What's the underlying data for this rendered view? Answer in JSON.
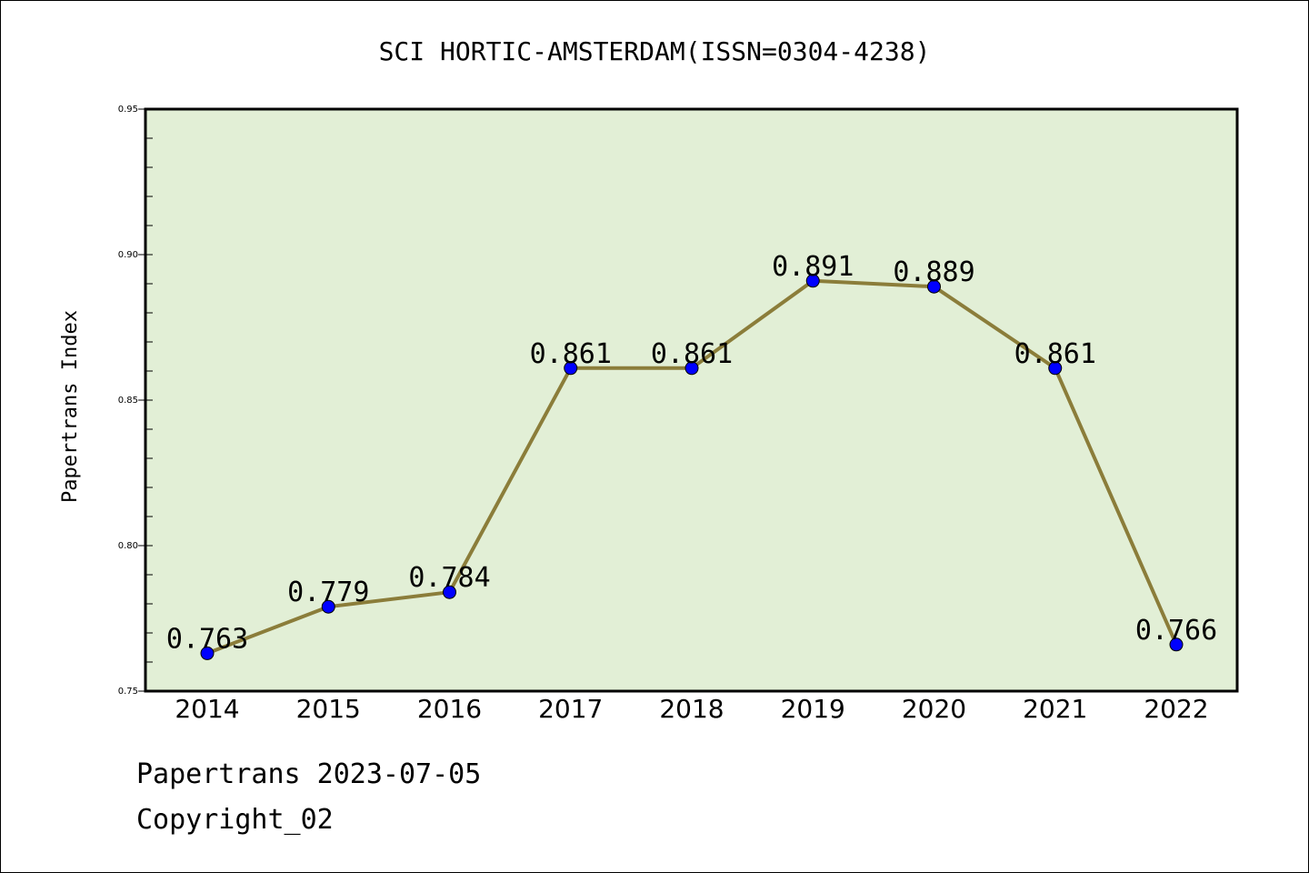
{
  "chart_data": {
    "type": "line",
    "title": "SCI HORTIC-AMSTERDAM(ISSN=0304-4238)",
    "xlabel": "",
    "ylabel": "Papertrans Index",
    "categories": [
      "2014",
      "2015",
      "2016",
      "2017",
      "2018",
      "2019",
      "2020",
      "2021",
      "2022"
    ],
    "series": [
      {
        "values": [
          0.763,
          0.779,
          0.784,
          0.861,
          0.861,
          0.891,
          0.889,
          0.861,
          0.766
        ],
        "labels": [
          "0.763",
          "0.779",
          "0.784",
          "0.861",
          "0.861",
          "0.891",
          "0.889",
          "0.861",
          "0.766"
        ]
      }
    ],
    "ylim": [
      0.75,
      0.95
    ],
    "yticks": [
      0.75,
      0.8,
      0.85,
      0.9,
      0.95
    ],
    "ytick_labels": [
      "0.75",
      "0.80",
      "0.85",
      "0.90",
      "0.95"
    ],
    "grid": false,
    "colors": {
      "plot_background": "#e2efd6",
      "line": "#8b7d3a",
      "marker": "#0000ff",
      "axes": "#000000"
    }
  },
  "footer": {
    "date_line": "Papertrans 2023-07-05",
    "copyright": "Copyright_02"
  }
}
